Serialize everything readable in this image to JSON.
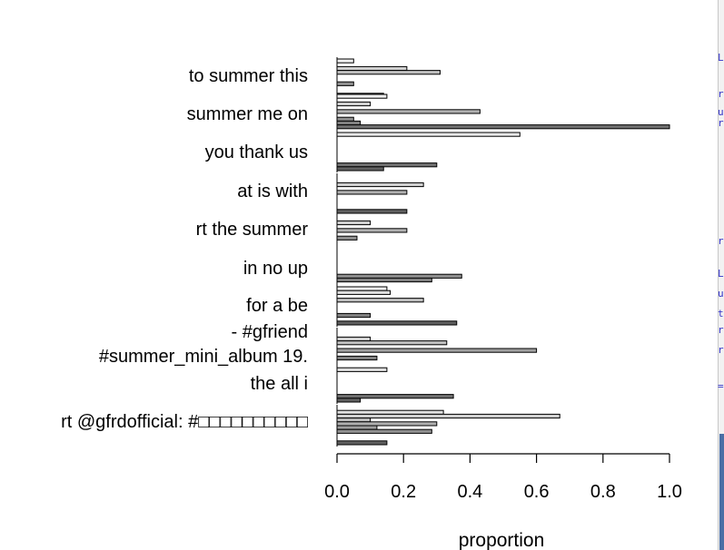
{
  "chart_data": {
    "type": "bar",
    "orientation": "horizontal",
    "title": "",
    "xlabel": "proportion",
    "ylabel": "",
    "xlim": [
      0,
      1.0
    ],
    "xticks": [
      "0.0",
      "0.2",
      "0.4",
      "0.6",
      "0.8",
      "1.0"
    ],
    "grid": false,
    "categories": [
      "to summer this",
      "summer me on",
      "you thank us",
      "at is with",
      "rt the summer",
      "in no up",
      "for a be",
      "- #gfriend",
      "#summer_mini_album 19.",
      "the all i",
      "rt @gfrdofficial: #□□□□□□□□□□"
    ],
    "series": [
      {
        "values": [
          0.05,
          0.15,
          0.0,
          0.0,
          0.0,
          0.0,
          0.15,
          0.0,
          0.0,
          0.0,
          0.0
        ],
        "color": "#f0f0f0"
      },
      {
        "values": [
          0.0,
          0.0,
          0.0,
          0.0,
          0.0,
          0.0,
          0.16,
          0.0,
          0.0,
          0.15,
          0.32
        ],
        "color": "#e0e0e0"
      },
      {
        "values": [
          0.21,
          0.1,
          0.0,
          0.26,
          0.1,
          0.0,
          0.0,
          0.0,
          0.1,
          0.0,
          0.67
        ],
        "color": "#d0d0d0"
      },
      {
        "values": [
          0.31,
          0.0,
          0.0,
          0.0,
          0.0,
          0.0,
          0.26,
          0.0,
          0.33,
          0.0,
          0.1
        ],
        "color": "#c0c0c0"
      },
      {
        "values": [
          0.0,
          0.43,
          0.0,
          0.21,
          0.21,
          0.0,
          0.0,
          0.0,
          0.0,
          0.0,
          0.3
        ],
        "color": "#b0b0b0"
      },
      {
        "values": [
          0.0,
          0.0,
          0.0,
          0.0,
          0.0,
          0.0,
          0.0,
          0.0,
          0.6,
          0.0,
          0.12
        ],
        "color": "#a0a0a0"
      },
      {
        "values": [
          0.05,
          0.05,
          0.0,
          0.0,
          0.06,
          0.375,
          0.0,
          0.0,
          0.0,
          0.0,
          0.285
        ],
        "color": "#909090"
      },
      {
        "values": [
          0.0,
          0.07,
          0.0,
          0.0,
          0.0,
          0.285,
          0.1,
          0.0,
          0.12,
          0.0,
          0.0
        ],
        "color": "#808080"
      },
      {
        "values": [
          0.0,
          1.0,
          0.3,
          0.0,
          0.0,
          0.0,
          0.0,
          0.0,
          0.0,
          0.35,
          0.0
        ],
        "color": "#707070"
      },
      {
        "values": [
          0.14,
          0.0,
          0.14,
          0.21,
          0.0,
          0.0,
          0.36,
          0.0,
          0.0,
          0.07,
          0.15
        ],
        "color": "#606060"
      }
    ],
    "extra_bars": [
      {
        "category": "summer me on",
        "value": 0.55,
        "color": "#e8e8e8"
      }
    ]
  },
  "edge_glyphs": [
    "L",
    "r",
    "u",
    "r",
    "r",
    "L",
    "u",
    "t",
    "r",
    "r",
    "="
  ]
}
